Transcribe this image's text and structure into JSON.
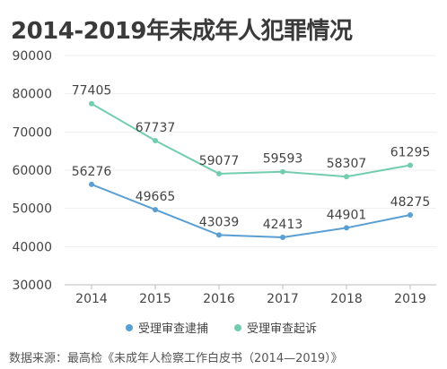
{
  "title": "2014-2019年未成年人犯罪情况",
  "source": "数据来源：最高检《未成年人检察工作白皮书（2014—2019）》",
  "colors": {
    "series_blue": "#5a9fd4",
    "series_green": "#72cdb0",
    "grid": "#eeeeee",
    "axis": "#bbbbbb",
    "text": "#444444"
  },
  "chart_data": {
    "type": "line",
    "x": [
      "2014",
      "2015",
      "2016",
      "2017",
      "2018",
      "2019"
    ],
    "ylim": [
      30000,
      90000
    ],
    "yticks": [
      30000,
      40000,
      50000,
      60000,
      70000,
      80000,
      90000
    ],
    "grid": true,
    "legend_position": "bottom-center",
    "series": [
      {
        "name": "受理审查逮捕",
        "color": "#5a9fd4",
        "values": [
          56276,
          49665,
          43039,
          42413,
          44901,
          48275
        ]
      },
      {
        "name": "受理审查起诉",
        "color": "#72cdb0",
        "values": [
          77405,
          67737,
          59077,
          59593,
          58307,
          61295
        ]
      }
    ]
  }
}
